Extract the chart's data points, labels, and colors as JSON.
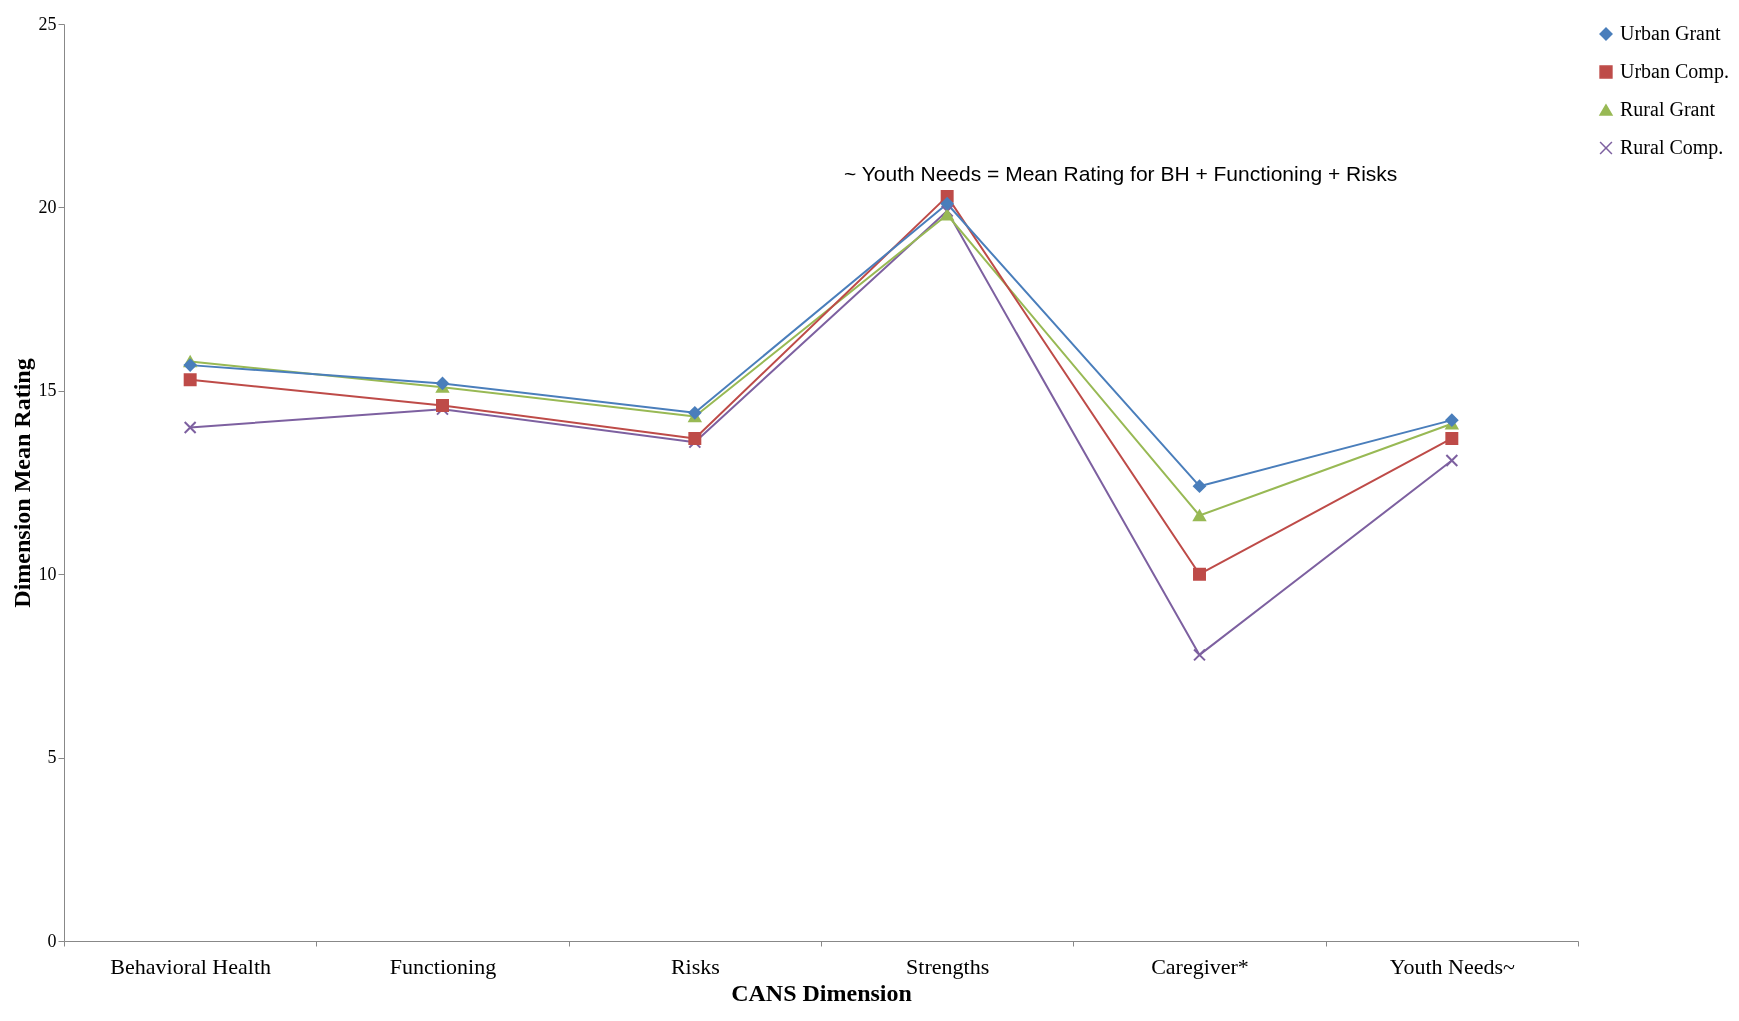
{
  "chart_data": {
    "type": "line",
    "xlabel": "CANS Dimension",
    "ylabel": "Dimension Mean Rating",
    "categories": [
      "Behavioral Health",
      "Functioning",
      "Risks",
      "Strengths",
      "Caregiver*",
      "Youth Needs~"
    ],
    "ylim": [
      0,
      25
    ],
    "yticks": [
      0,
      5,
      10,
      15,
      20,
      25
    ],
    "grid": false,
    "legend": "right",
    "annotations": [
      "~ Youth Needs = Mean Rating for BH + Functioning + Risks"
    ],
    "series": [
      {
        "name": "Urban Grant",
        "color": "#4a7ebb",
        "marker": "diamond",
        "values": [
          15.7,
          15.2,
          14.4,
          20.1,
          12.4,
          14.2
        ]
      },
      {
        "name": "Urban Comp.",
        "color": "#be4b48",
        "marker": "square",
        "values": [
          15.3,
          14.6,
          13.7,
          20.3,
          10.0,
          13.7
        ]
      },
      {
        "name": "Rural Grant",
        "color": "#98b954",
        "marker": "triangle",
        "values": [
          15.8,
          15.1,
          14.3,
          19.8,
          11.6,
          14.1
        ]
      },
      {
        "name": "Rural Comp.",
        "color": "#7d60a0",
        "marker": "cross",
        "values": [
          14.0,
          14.5,
          13.6,
          19.9,
          7.8,
          13.1
        ]
      }
    ]
  }
}
